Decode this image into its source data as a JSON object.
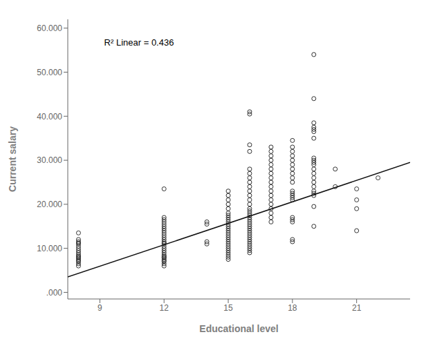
{
  "chart_data": {
    "type": "scatter",
    "xlabel": "Educational level",
    "ylabel": "Current salary",
    "xlim": [
      7.5,
      23.5
    ],
    "ylim": [
      -1500,
      62000
    ],
    "xticks": [
      9,
      12,
      15,
      18,
      21
    ],
    "yticks": [
      {
        "value": 0,
        "label": ".000"
      },
      {
        "value": 10000,
        "label": "10.000"
      },
      {
        "value": 20000,
        "label": "20.000"
      },
      {
        "value": 30000,
        "label": "30.000"
      },
      {
        "value": 40000,
        "label": "40.000"
      },
      {
        "value": 50000,
        "label": "50.000"
      },
      {
        "value": 60000,
        "label": "60.000"
      }
    ],
    "grid": false,
    "annotations": [
      {
        "text": "R² Linear = 0.436",
        "x": 9.2,
        "y": 57500
      }
    ],
    "series": [
      {
        "type": "scatter",
        "marker": "circle",
        "color": "#333333",
        "x": [
          8,
          8,
          8,
          8,
          8,
          8,
          8,
          8,
          8,
          8,
          8,
          8,
          8,
          8,
          8,
          8,
          8,
          8,
          12,
          12,
          12,
          12,
          12,
          12,
          12,
          12,
          12,
          12,
          12,
          12,
          12,
          12,
          12,
          12,
          12,
          12,
          12,
          12,
          12,
          12,
          12,
          12,
          12,
          12,
          12,
          12,
          14,
          14,
          14,
          14,
          15,
          15,
          15,
          15,
          15,
          15,
          15,
          15,
          15,
          15,
          15,
          15,
          15,
          15,
          15,
          15,
          15,
          15,
          15,
          15,
          15,
          15,
          15,
          15,
          15,
          15,
          15,
          16,
          16,
          16,
          16,
          16,
          16,
          16,
          16,
          16,
          16,
          16,
          16,
          16,
          16,
          16,
          16,
          16,
          16,
          16,
          16,
          16,
          16,
          16,
          16,
          16,
          16,
          16,
          16,
          16,
          16,
          16,
          16,
          16,
          16,
          17,
          17,
          17,
          17,
          17,
          17,
          17,
          17,
          17,
          17,
          17,
          17,
          17,
          17,
          17,
          17,
          17,
          17,
          18,
          18,
          18,
          18,
          18,
          18,
          18,
          18,
          18,
          18,
          18,
          18,
          18,
          18,
          18,
          18,
          18,
          18,
          18,
          18,
          19,
          19,
          19,
          19,
          19,
          19,
          19,
          19,
          19,
          19,
          19,
          19,
          19,
          19,
          19,
          19,
          19,
          19,
          19,
          19,
          19,
          20,
          20,
          21,
          21,
          21,
          21,
          22
        ],
        "values": [
          6000,
          6500,
          7000,
          7200,
          7500,
          7800,
          8000,
          8200,
          8500,
          9000,
          9500,
          10000,
          10500,
          11000,
          11200,
          11500,
          12000,
          13500,
          6000,
          6500,
          7000,
          7200,
          7500,
          7800,
          8000,
          8200,
          8500,
          9000,
          9500,
          10000,
          10500,
          11000,
          11200,
          11500,
          12000,
          12500,
          13000,
          13500,
          14000,
          14500,
          15000,
          15500,
          16000,
          16500,
          17000,
          23500,
          11000,
          11500,
          15500,
          16000,
          7500,
          8000,
          8500,
          9000,
          9500,
          10000,
          10500,
          11000,
          11500,
          12000,
          12500,
          13000,
          13500,
          14000,
          14500,
          15000,
          15500,
          16000,
          16500,
          17000,
          17500,
          18000,
          19000,
          20000,
          21000,
          22000,
          23000,
          9000,
          9500,
          10000,
          10500,
          11000,
          11500,
          12000,
          12500,
          13000,
          13500,
          14000,
          14500,
          15000,
          15500,
          16000,
          16500,
          17000,
          17500,
          18000,
          18500,
          19000,
          20000,
          21000,
          22000,
          23000,
          24000,
          25000,
          26000,
          27000,
          28000,
          32000,
          33500,
          40500,
          41000,
          16000,
          17000,
          18000,
          19000,
          20000,
          21000,
          22000,
          23000,
          24000,
          25000,
          26000,
          27000,
          28000,
          29000,
          30000,
          31000,
          32000,
          33000,
          11500,
          12000,
          16000,
          16500,
          17000,
          21000,
          21500,
          22000,
          22500,
          23000,
          25000,
          26000,
          27000,
          28000,
          29000,
          30000,
          31000,
          32000,
          33000,
          34500,
          15000,
          19500,
          22000,
          22500,
          23000,
          24000,
          25000,
          26000,
          27000,
          28000,
          29000,
          29500,
          30000,
          30500,
          35000,
          36500,
          37000,
          37500,
          38500,
          44000,
          54000,
          24000,
          28000,
          14000,
          19000,
          21000,
          23500,
          26000
        ]
      },
      {
        "type": "line",
        "color": "#111111",
        "x": [
          7.5,
          23.5
        ],
        "values": [
          3500,
          29500
        ]
      }
    ]
  }
}
